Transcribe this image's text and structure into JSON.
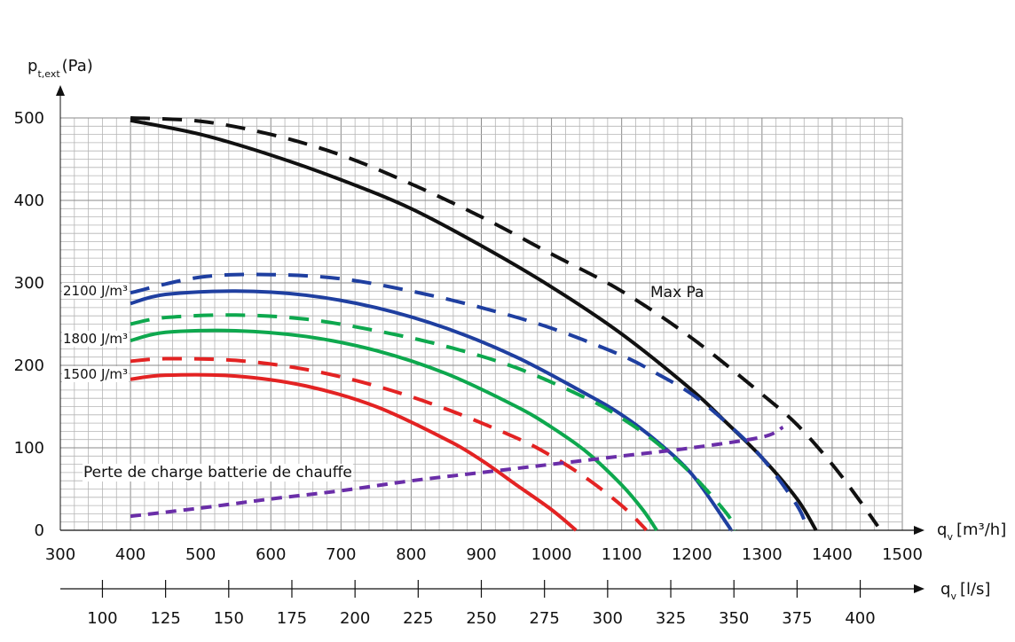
{
  "chart_data": {
    "type": "line",
    "y_axis": {
      "label_main": "p",
      "label_sub": "t,ext",
      "label_unit": "(Pa)",
      "range": [
        0,
        500
      ],
      "ticks": [
        0,
        100,
        200,
        300,
        400,
        500
      ],
      "tick_labels": [
        "0",
        "100",
        "200",
        "300",
        "400",
        "500"
      ]
    },
    "x_axis_primary": {
      "label_main": "q",
      "label_sub": "v",
      "label_unit": "[m³/h]",
      "range": [
        300,
        1500
      ],
      "ticks": [
        300,
        400,
        500,
        600,
        700,
        800,
        900,
        1000,
        1100,
        1200,
        1300,
        1400,
        1500
      ],
      "tick_labels": [
        "300",
        "400",
        "500",
        "600",
        "700",
        "800",
        "900",
        "1000",
        "1100",
        "1200",
        "1300",
        "1400",
        "1500"
      ]
    },
    "x_axis_secondary": {
      "label_main": "q",
      "label_sub": "v",
      "label_unit": "[l/s]",
      "ticks": [
        100,
        125,
        150,
        175,
        200,
        225,
        250,
        275,
        300,
        325,
        350,
        375,
        400
      ],
      "tick_labels": [
        "100",
        "125",
        "150",
        "175",
        "200",
        "225",
        "250",
        "275",
        "300",
        "325",
        "350",
        "375",
        "400"
      ]
    },
    "grid": true,
    "series": [
      {
        "name": "Max Pa",
        "color": "#111111",
        "style": "dashed",
        "points": [
          [
            400,
            500
          ],
          [
            500,
            496
          ],
          [
            600,
            480
          ],
          [
            700,
            455
          ],
          [
            800,
            420
          ],
          [
            900,
            380
          ],
          [
            1000,
            335
          ],
          [
            1100,
            290
          ],
          [
            1200,
            233
          ],
          [
            1300,
            165
          ],
          [
            1350,
            128
          ],
          [
            1400,
            80
          ],
          [
            1440,
            35
          ],
          [
            1465,
            5
          ]
        ]
      },
      {
        "series_ref": "Max Pa",
        "color": "#111111",
        "style": "solid",
        "points": [
          [
            400,
            497
          ],
          [
            500,
            480
          ],
          [
            600,
            455
          ],
          [
            700,
            425
          ],
          [
            800,
            390
          ],
          [
            900,
            345
          ],
          [
            1000,
            295
          ],
          [
            1100,
            238
          ],
          [
            1200,
            170
          ],
          [
            1250,
            130
          ],
          [
            1300,
            88
          ],
          [
            1350,
            38
          ],
          [
            1377,
            0
          ]
        ]
      },
      {
        "name": "2100 J/m³",
        "color": "#1f3fa0",
        "style": "dashed",
        "points": [
          [
            400,
            288
          ],
          [
            500,
            307
          ],
          [
            600,
            310
          ],
          [
            700,
            305
          ],
          [
            800,
            290
          ],
          [
            900,
            270
          ],
          [
            1000,
            245
          ],
          [
            1100,
            212
          ],
          [
            1150,
            190
          ],
          [
            1200,
            165
          ],
          [
            1250,
            130
          ],
          [
            1300,
            88
          ],
          [
            1350,
            30
          ],
          [
            1365,
            0
          ]
        ]
      },
      {
        "name": "2100 J/m³",
        "color": "#1f3fa0",
        "style": "solid",
        "points": [
          [
            400,
            275
          ],
          [
            450,
            286
          ],
          [
            550,
            290
          ],
          [
            650,
            285
          ],
          [
            750,
            270
          ],
          [
            850,
            245
          ],
          [
            950,
            210
          ],
          [
            1050,
            165
          ],
          [
            1100,
            140
          ],
          [
            1150,
            108
          ],
          [
            1200,
            68
          ],
          [
            1250,
            8
          ],
          [
            1255,
            0
          ]
        ]
      },
      {
        "name": "1800 J/m³",
        "color": "#0ea84e",
        "style": "dashed",
        "points": [
          [
            400,
            250
          ],
          [
            450,
            258
          ],
          [
            550,
            261
          ],
          [
            650,
            256
          ],
          [
            750,
            242
          ],
          [
            850,
            223
          ],
          [
            950,
            197
          ],
          [
            1050,
            160
          ],
          [
            1100,
            136
          ],
          [
            1150,
            106
          ],
          [
            1200,
            68
          ],
          [
            1250,
            20
          ],
          [
            1262,
            0
          ]
        ]
      },
      {
        "name": "1800 J/m³",
        "color": "#0ea84e",
        "style": "solid",
        "points": [
          [
            400,
            230
          ],
          [
            450,
            240
          ],
          [
            550,
            242
          ],
          [
            650,
            235
          ],
          [
            750,
            218
          ],
          [
            850,
            190
          ],
          [
            950,
            150
          ],
          [
            1000,
            125
          ],
          [
            1050,
            95
          ],
          [
            1100,
            55
          ],
          [
            1130,
            25
          ],
          [
            1150,
            0
          ]
        ]
      },
      {
        "name": "1500 J/m³",
        "color": "#e32323",
        "style": "dashed",
        "points": [
          [
            400,
            205
          ],
          [
            450,
            208
          ],
          [
            550,
            206
          ],
          [
            650,
            195
          ],
          [
            750,
            175
          ],
          [
            850,
            147
          ],
          [
            950,
            112
          ],
          [
            1000,
            90
          ],
          [
            1050,
            63
          ],
          [
            1100,
            30
          ],
          [
            1130,
            5
          ],
          [
            1135,
            0
          ]
        ]
      },
      {
        "name": "1500 J/m³",
        "color": "#e32323",
        "style": "solid",
        "points": [
          [
            400,
            183
          ],
          [
            450,
            188
          ],
          [
            550,
            187
          ],
          [
            650,
            175
          ],
          [
            750,
            150
          ],
          [
            850,
            110
          ],
          [
            900,
            85
          ],
          [
            950,
            55
          ],
          [
            1000,
            25
          ],
          [
            1035,
            0
          ]
        ]
      },
      {
        "name": "Perte de charge batterie de chauffe",
        "color": "#6a2ea8",
        "style": "dashed",
        "points": [
          [
            400,
            17
          ],
          [
            500,
            27
          ],
          [
            600,
            38
          ],
          [
            700,
            48
          ],
          [
            800,
            60
          ],
          [
            900,
            70
          ],
          [
            1000,
            80
          ],
          [
            1100,
            90
          ],
          [
            1200,
            100
          ],
          [
            1300,
            113
          ],
          [
            1330,
            125
          ]
        ]
      }
    ],
    "annotations": [
      {
        "text": "Max Pa",
        "x": 1000,
        "y": 290
      },
      {
        "text": "2100 J/m³",
        "x": 400,
        "y": 290
      },
      {
        "text": "1800 J/m³",
        "x": 400,
        "y": 230
      },
      {
        "text": "1500 J/m³",
        "x": 400,
        "y": 190
      },
      {
        "text": "Perte de charge batterie de chauffe",
        "x": 400,
        "y": 72
      }
    ]
  }
}
